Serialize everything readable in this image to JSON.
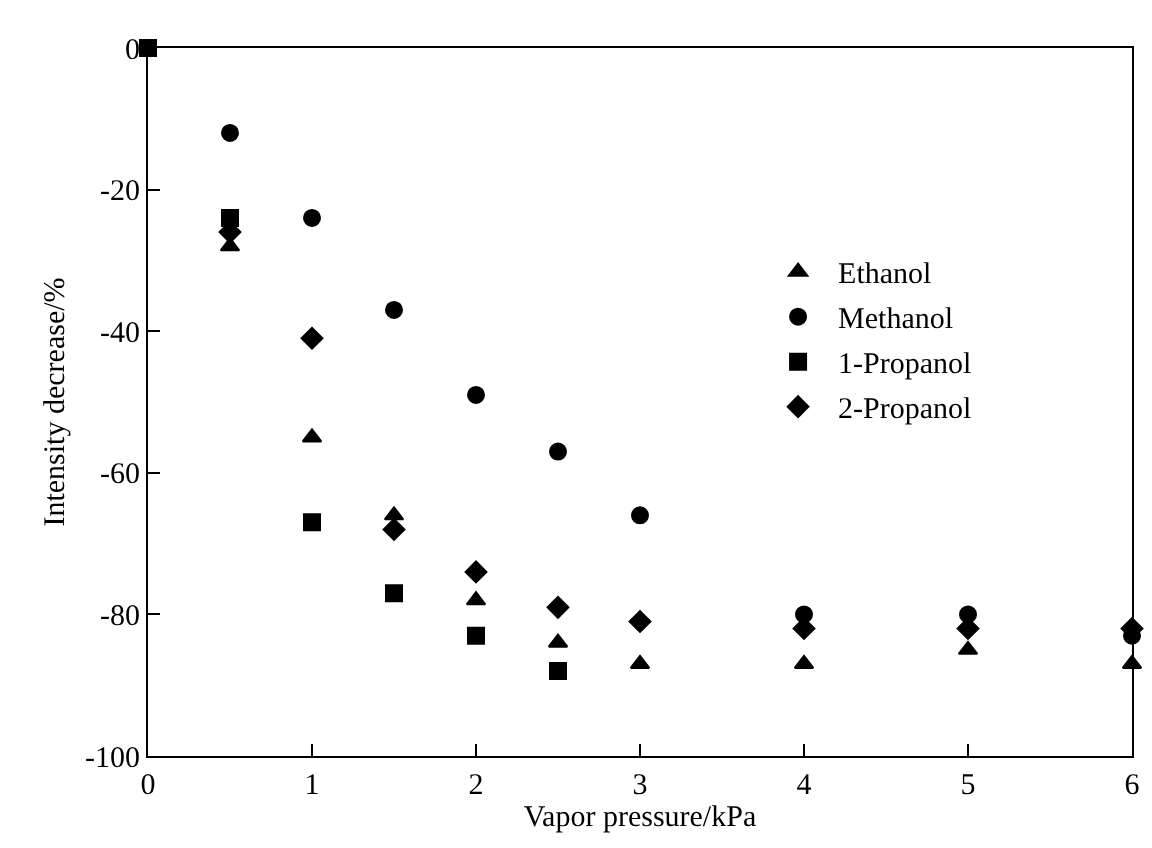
{
  "chart_data": {
    "type": "scatter",
    "xlabel": "Vapor pressure/kPa",
    "ylabel": "Intensity decrease/%",
    "xlim": [
      0,
      6
    ],
    "xticks": [
      0,
      1,
      2,
      3,
      4,
      5,
      6
    ],
    "ylim": [
      -100,
      0
    ],
    "yticks": [
      -100,
      -80,
      -60,
      -40,
      -20,
      0
    ],
    "legend": "top right",
    "series": [
      {
        "name": "Ethanol",
        "color": "#000000",
        "marker": "triangle",
        "x": [
          0.5,
          1,
          1.5,
          2,
          2.5,
          3,
          4,
          5,
          6
        ],
        "values": [
          -28,
          -55,
          -66,
          -78,
          -84,
          -87,
          -87,
          -85,
          -87
        ]
      },
      {
        "name": "Methanol",
        "color": "#000000",
        "marker": "circle",
        "x": [
          0.5,
          1,
          1.5,
          2,
          2.5,
          3,
          4,
          5,
          6
        ],
        "values": [
          -12,
          -24,
          -37,
          -49,
          -57,
          -66,
          -80,
          -80,
          -83
        ]
      },
      {
        "name": "1-Propanol",
        "color": "#000000",
        "marker": "square",
        "x": [
          0,
          0.5,
          1,
          1.5,
          2,
          2.5
        ],
        "values": [
          0,
          -24,
          -67,
          -77,
          -83,
          -88
        ]
      },
      {
        "name": "2-Propanol",
        "color": "#000000",
        "marker": "diamond",
        "x": [
          0.5,
          1,
          1.5,
          2,
          2.5,
          3,
          4,
          5,
          6
        ],
        "values": [
          -26,
          -41,
          -68,
          -74,
          -79,
          -81,
          -82,
          -82,
          -82
        ]
      }
    ]
  }
}
